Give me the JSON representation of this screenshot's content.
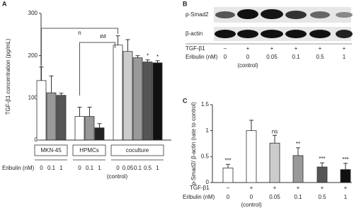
{
  "chart_data": [
    {
      "type": "bar",
      "panel": "A",
      "y_label": "TGF-β1 concentration (pg/mL)",
      "ylim": [
        0,
        300
      ],
      "yticks": [
        0,
        100,
        200,
        300
      ],
      "groups": [
        {
          "name": "MKN-45",
          "categories": [
            "0",
            "0.1",
            "1"
          ],
          "values": [
            141,
            112,
            106
          ],
          "errors": [
            32,
            40,
            5
          ],
          "colors": [
            "#ffffff",
            "#999999",
            "#555555"
          ],
          "markers": [
            null,
            null,
            null
          ]
        },
        {
          "name": "HPMCs",
          "categories": [
            "0",
            "0.1",
            "1"
          ],
          "values": [
            56,
            56,
            29
          ],
          "errors": [
            22,
            22,
            10
          ],
          "colors": [
            "#ffffff",
            "#999999",
            "#222222"
          ],
          "markers": [
            null,
            null,
            null
          ]
        },
        {
          "name": "coculture",
          "categories": [
            "0",
            "0.05",
            "0.1",
            "0.5",
            "1"
          ],
          "values": [
            225,
            210,
            195,
            185,
            183
          ],
          "errors": [
            22,
            28,
            5,
            5,
            5
          ],
          "colors": [
            "#ffffff",
            "#cccccc",
            "#999999",
            "#555555",
            "#111111"
          ],
          "markers": [
            null,
            null,
            null,
            "*",
            "*"
          ]
        }
      ],
      "annotations": [
        "n",
        "##"
      ],
      "x_label": "Eribulin (nM)",
      "control_label": "(control)"
    },
    {
      "type": "bar",
      "panel": "C",
      "y_label": "p-Smad2/ β-actin (rate to control)",
      "ylim": [
        0,
        1.5
      ],
      "yticks": [
        0,
        0.5,
        1,
        1.5
      ],
      "tgf_label": "TGF-β1",
      "tgf": [
        "–",
        "+",
        "+",
        "+",
        "+",
        "+"
      ],
      "x_label": "Eribulin (nM)",
      "categories": [
        "0",
        "0",
        "0.05",
        "0.1",
        "0.5",
        "1"
      ],
      "values": [
        0.28,
        1.0,
        0.76,
        0.52,
        0.3,
        0.25
      ],
      "errors": [
        0.07,
        0.2,
        0.15,
        0.15,
        0.08,
        0.12
      ],
      "colors": [
        "#ffffff",
        "#ffffff",
        "#cccccc",
        "#999999",
        "#555555",
        "#111111"
      ],
      "markers": [
        "***",
        null,
        "ns",
        "**",
        "***",
        "***"
      ],
      "control_label": "(control)"
    }
  ],
  "blot": {
    "panel": "B",
    "rows": [
      "p-Smad2",
      "β-actin"
    ],
    "tgf_label": "TGF-β1",
    "tgf": [
      "–",
      "+",
      "+",
      "+",
      "+",
      "+"
    ],
    "eribulin_label": "Eribulin (nM)",
    "eribulin": [
      "0",
      "0",
      "0.05",
      "0.1",
      "0.5",
      "1"
    ],
    "control_label": "(control)"
  }
}
